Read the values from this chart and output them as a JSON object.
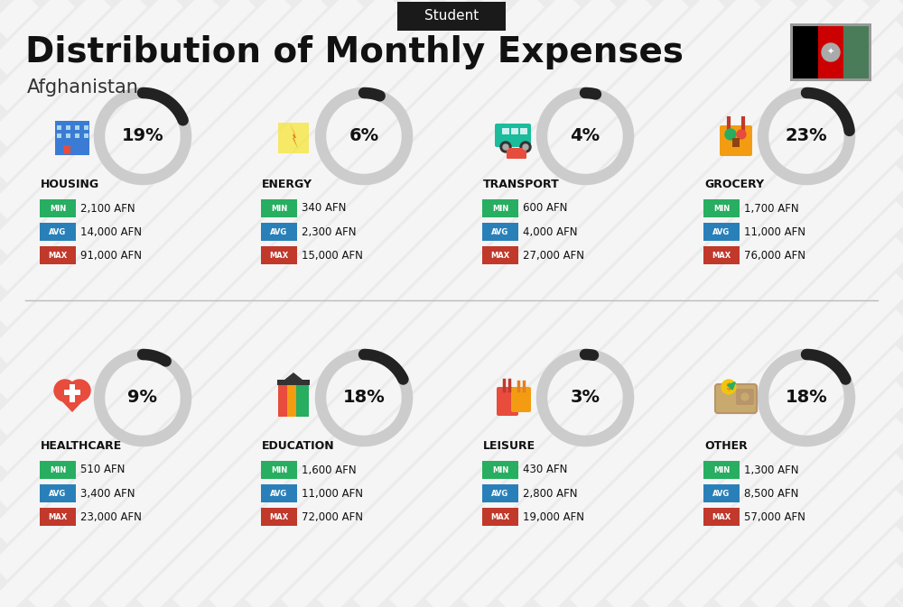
{
  "title": "Distribution of Monthly Expenses",
  "subtitle": "Afghanistan",
  "tag": "Student",
  "bg_color": "#ebebeb",
  "stripe_color": "#ffffff",
  "categories": [
    {
      "name": "HOUSING",
      "pct": 19,
      "min": "2,100 AFN",
      "avg": "14,000 AFN",
      "max": "91,000 AFN",
      "row": 0,
      "col": 0
    },
    {
      "name": "ENERGY",
      "pct": 6,
      "min": "340 AFN",
      "avg": "2,300 AFN",
      "max": "15,000 AFN",
      "row": 0,
      "col": 1
    },
    {
      "name": "TRANSPORT",
      "pct": 4,
      "min": "600 AFN",
      "avg": "4,000 AFN",
      "max": "27,000 AFN",
      "row": 0,
      "col": 2
    },
    {
      "name": "GROCERY",
      "pct": 23,
      "min": "1,700 AFN",
      "avg": "11,000 AFN",
      "max": "76,000 AFN",
      "row": 0,
      "col": 3
    },
    {
      "name": "HEALTHCARE",
      "pct": 9,
      "min": "510 AFN",
      "avg": "3,400 AFN",
      "max": "23,000 AFN",
      "row": 1,
      "col": 0
    },
    {
      "name": "EDUCATION",
      "pct": 18,
      "min": "1,600 AFN",
      "avg": "11,000 AFN",
      "max": "72,000 AFN",
      "row": 1,
      "col": 1
    },
    {
      "name": "LEISURE",
      "pct": 3,
      "min": "430 AFN",
      "avg": "2,800 AFN",
      "max": "19,000 AFN",
      "row": 1,
      "col": 2
    },
    {
      "name": "OTHER",
      "pct": 18,
      "min": "1,300 AFN",
      "avg": "8,500 AFN",
      "max": "57,000 AFN",
      "row": 1,
      "col": 3
    }
  ],
  "color_min": "#27ae60",
  "color_avg": "#2980b9",
  "color_max": "#c0392b",
  "color_circle_bg": "#cccccc",
  "color_circle_arc": "#222222",
  "title_fontsize": 28,
  "subtitle_fontsize": 15,
  "tag_fontsize": 11,
  "cat_fontsize": 9,
  "pct_fontsize": 14,
  "val_fontsize": 8.5,
  "label_fontsize": 6,
  "flag_colors": [
    "#000000",
    "#cc0001",
    "#4a7c59"
  ],
  "flag_emblem_color": "#ffffff"
}
